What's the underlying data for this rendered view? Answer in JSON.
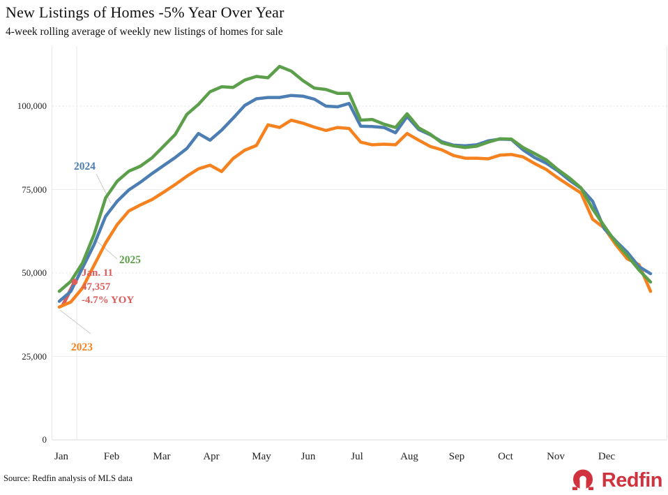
{
  "source": "Source: Redfin analysis of MLS data",
  "logo": {
    "text": "Redfin",
    "color": "#d0323e"
  },
  "chart_data": {
    "type": "line",
    "title": "New Listings of Homes -5% Year Over Year",
    "subtitle": "4-week rolling average of weekly new listings of homes for sale",
    "x_unit": "week of year (52 weekly points per series)",
    "xlabels": [
      "Jan",
      "Feb",
      "Mar",
      "Apr",
      "May",
      "Jun",
      "Jul",
      "Aug",
      "Sep",
      "Oct",
      "Nov",
      "Dec"
    ],
    "ylim": [
      0,
      115000
    ],
    "grid": "light horizontal lines at each y tick, dotted at 50,000 and 100,000; vertical marker line at mid-January",
    "legend_position": "inline labels next to lines",
    "yticks": [
      {
        "value": 0,
        "label": "0",
        "dotted": false
      },
      {
        "value": 25000,
        "label": "25,000",
        "dotted": false
      },
      {
        "value": 50000,
        "label": "50,000",
        "dotted": true
      },
      {
        "value": 75000,
        "label": "75,000",
        "dotted": false
      },
      {
        "value": 100000,
        "label": "100,000",
        "dotted": true
      }
    ],
    "series": [
      {
        "name": "2023",
        "color": "#f6821f",
        "values": [
          39800,
          41300,
          45500,
          52300,
          59000,
          64500,
          68600,
          70400,
          72000,
          74200,
          76500,
          79000,
          81200,
          82300,
          80400,
          84300,
          86800,
          88200,
          94400,
          93600,
          95800,
          94900,
          93700,
          92700,
          93600,
          93300,
          89200,
          88400,
          88600,
          88400,
          91800,
          89800,
          87900,
          86900,
          85200,
          84400,
          84400,
          84200,
          85300,
          85500,
          84800,
          82800,
          81000,
          78500,
          76200,
          74000,
          66100,
          63500,
          58500,
          54200,
          52500,
          44500
        ]
      },
      {
        "name": "2024",
        "color": "#4d7eb3",
        "values": [
          41500,
          44500,
          51500,
          58500,
          67000,
          71500,
          74900,
          77200,
          79800,
          82200,
          84600,
          87300,
          91800,
          89800,
          92800,
          96400,
          100200,
          102200,
          102600,
          102600,
          103200,
          103000,
          102100,
          100000,
          99800,
          100800,
          94000,
          93900,
          93600,
          92000,
          96900,
          93000,
          91400,
          89300,
          88300,
          88100,
          88400,
          89600,
          90100,
          90000,
          86900,
          84600,
          82900,
          80600,
          77800,
          75400,
          71500,
          63300,
          59600,
          56200,
          51900,
          49800
        ]
      },
      {
        "name": "2025",
        "color": "#5c9f4b",
        "values": [
          44500,
          47500,
          53000,
          61500,
          72500,
          77500,
          80500,
          82000,
          84500,
          88000,
          91500,
          97500,
          100500,
          104300,
          105800,
          105600,
          107800,
          108900,
          108500,
          111900,
          110500,
          107700,
          105400,
          105000,
          103800,
          103800,
          95800,
          96000,
          94600,
          93600,
          97700,
          93500,
          91600,
          89000,
          88100,
          87600,
          88000,
          89200,
          90200,
          90100,
          87600,
          85800,
          83900,
          81000,
          78500,
          75500,
          69200,
          64100,
          59200,
          55200,
          50900,
          47300
        ]
      }
    ],
    "current": {
      "color": "#dc5b5b",
      "points": [
        {
          "week": 0.3,
          "value": 40300
        },
        {
          "week": 1.32,
          "value": 47357
        }
      ],
      "annotation": [
        "Jan. 11",
        "47,357",
        "-4.7% YOY"
      ],
      "latest_date": "Jan. 11",
      "latest_value": 47357,
      "yoy_change": "-4.7% YOY"
    }
  }
}
